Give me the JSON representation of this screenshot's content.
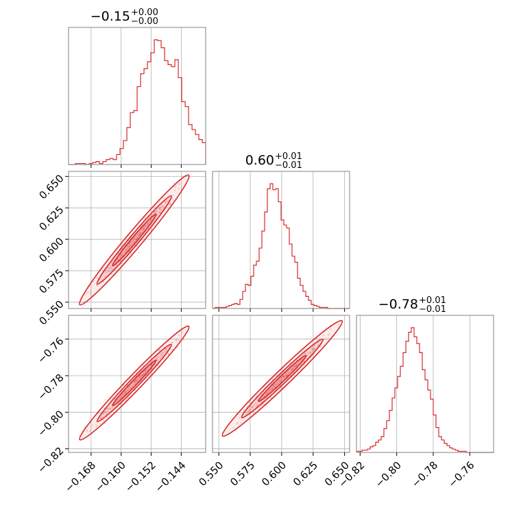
{
  "chart_data": {
    "type": "corner",
    "color": "#d62728",
    "parameters": [
      {
        "title_value": "−0.15",
        "title_plus": "+0.00",
        "title_minus": "−0.00",
        "range": [
          -0.174,
          -0.1375
        ],
        "ticks": [
          -0.168,
          -0.16,
          -0.152,
          -0.144
        ],
        "tick_labels": [
          "−0.168",
          "−0.160",
          "−0.152",
          "−0.144"
        ]
      },
      {
        "title_value": "0.60",
        "title_plus": "+0.01",
        "title_minus": "−0.01",
        "range": [
          0.545,
          0.654
        ],
        "ticks": [
          0.55,
          0.575,
          0.6,
          0.625,
          0.65
        ],
        "tick_labels": [
          "0.550",
          "0.575",
          "0.600",
          "0.625",
          "0.650"
        ]
      },
      {
        "title_value": "−0.78",
        "title_plus": "+0.01",
        "title_minus": "−0.01",
        "range": [
          -0.822,
          -0.747
        ],
        "ticks": [
          -0.82,
          -0.8,
          -0.78,
          -0.76
        ],
        "tick_labels": [
          "−0.82",
          "−0.80",
          "−0.78",
          "−0.76"
        ]
      }
    ],
    "histograms": [
      {
        "parameter": 0,
        "bin_start": -0.174,
        "bin_width": 0.000913,
        "counts": [
          0,
          0,
          1,
          1,
          1,
          0,
          1,
          2,
          3,
          1,
          3,
          5,
          6,
          5,
          10,
          16,
          24,
          37,
          52,
          54,
          78,
          91,
          96,
          103,
          112,
          125,
          124,
          117,
          104,
          100,
          98,
          105,
          87,
          63,
          58,
          40,
          35,
          30,
          25,
          22,
          17,
          12,
          10,
          8,
          5,
          3,
          2,
          1,
          1,
          0
        ]
      },
      {
        "parameter": 1,
        "bin_start": 0.545,
        "bin_width": 0.00218,
        "counts": [
          0,
          1,
          1,
          1,
          1,
          2,
          3,
          4,
          5,
          4,
          9,
          17,
          24,
          23,
          32,
          43,
          47,
          60,
          77,
          96,
          119,
          124,
          118,
          119,
          106,
          88,
          83,
          80,
          64,
          52,
          46,
          30,
          23,
          17,
          12,
          8,
          4,
          3,
          2,
          1,
          1,
          1,
          0,
          0,
          0,
          0,
          0,
          0,
          0,
          0
        ]
      },
      {
        "parameter": 2,
        "bin_start": -0.822,
        "bin_width": 0.0015,
        "counts": [
          1,
          1,
          2,
          2,
          3,
          5,
          6,
          9,
          11,
          14,
          21,
          28,
          37,
          48,
          57,
          67,
          76,
          88,
          98,
          106,
          110,
          102,
          96,
          88,
          73,
          64,
          55,
          47,
          33,
          22,
          14,
          11,
          8,
          6,
          4,
          3,
          2,
          1,
          1,
          1,
          0,
          0,
          0,
          0,
          0,
          0,
          0,
          0,
          0,
          0
        ]
      }
    ],
    "correlations": [
      {
        "x": 0,
        "y": 1,
        "x_range": [
          -0.171,
          -0.142
        ],
        "y_range": [
          0.548,
          0.651
        ]
      },
      {
        "x": 0,
        "y": 2,
        "x_range": [
          -0.171,
          -0.142
        ],
        "y_range": [
          -0.815,
          -0.753
        ]
      },
      {
        "x": 1,
        "y": 2,
        "x_range": [
          0.553,
          0.648
        ],
        "y_range": [
          -0.813,
          -0.75
        ]
      }
    ],
    "grid": true
  }
}
